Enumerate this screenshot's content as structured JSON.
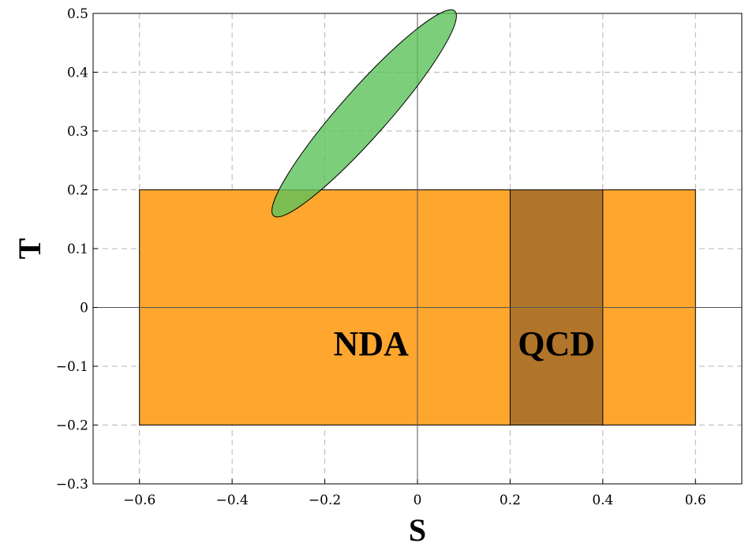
{
  "chart_data": {
    "type": "area",
    "xlabel": "S",
    "ylabel": "T",
    "xlim": [
      -0.7,
      0.7
    ],
    "ylim": [
      -0.3,
      0.5
    ],
    "xticks": [
      -0.6,
      -0.4,
      -0.2,
      0,
      0.2,
      0.4,
      0.6
    ],
    "xtick_labels": [
      "−0.6",
      "−0.4",
      "−0.2",
      "0",
      "0.2",
      "0.4",
      "0.6"
    ],
    "yticks": [
      -0.3,
      -0.2,
      -0.1,
      0,
      0.1,
      0.2,
      0.3,
      0.4,
      0.5
    ],
    "ytick_labels": [
      "−0.3",
      "−0.2",
      "−0.1",
      "0",
      "0.1",
      "0.2",
      "0.3",
      "0.4",
      "0.5"
    ],
    "grid": true,
    "regions": [
      {
        "label": "NDA",
        "shape": "rectangle",
        "s_range": [
          -0.6,
          0.6
        ],
        "t_range": [
          -0.2,
          0.2
        ],
        "color": "#ffa62f",
        "label_at": [
          -0.1,
          -0.06
        ]
      },
      {
        "label": "QCD",
        "shape": "rectangle",
        "s_range": [
          0.2,
          0.4
        ],
        "t_range": [
          -0.2,
          0.2
        ],
        "color": "#b0752a",
        "label_at": [
          0.3,
          -0.06
        ]
      }
    ],
    "ellipse": {
      "shape": "ellipse",
      "center": [
        -0.115,
        0.33
      ],
      "semi_axes": [
        0.26,
        0.045
      ],
      "angle_deg": 48.5,
      "color": "#5cc25a",
      "opacity": 0.8
    }
  }
}
